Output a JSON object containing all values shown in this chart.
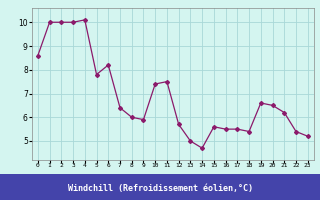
{
  "x": [
    0,
    1,
    2,
    3,
    4,
    5,
    6,
    7,
    8,
    9,
    10,
    11,
    12,
    13,
    14,
    15,
    16,
    17,
    18,
    19,
    20,
    21,
    22,
    23
  ],
  "y": [
    8.6,
    10.0,
    10.0,
    10.0,
    10.1,
    7.8,
    8.2,
    6.4,
    6.0,
    5.9,
    7.4,
    7.5,
    5.7,
    5.0,
    4.7,
    5.6,
    5.5,
    5.5,
    5.4,
    6.6,
    6.5,
    6.2,
    5.4,
    5.2
  ],
  "line_color": "#8b1a6b",
  "marker": "D",
  "markersize": 2.0,
  "linewidth": 0.9,
  "bg_color": "#d4f5f0",
  "grid_color": "#a8d8d8",
  "xlabel": "Windchill (Refroidissement éolien,°C)",
  "xlabel_bg": "#4444aa",
  "xlabel_color": "#ffffff",
  "yticks": [
    5,
    6,
    7,
    8,
    9,
    10
  ],
  "ylim": [
    4.2,
    10.6
  ],
  "xlim": [
    -0.5,
    23.5
  ],
  "xtick_labels": [
    "0",
    "1",
    "2",
    "3",
    "4",
    "5",
    "6",
    "7",
    "8",
    "9",
    "10",
    "11",
    "12",
    "13",
    "14",
    "15",
    "16",
    "17",
    "18",
    "19",
    "20",
    "21",
    "22",
    "23"
  ]
}
